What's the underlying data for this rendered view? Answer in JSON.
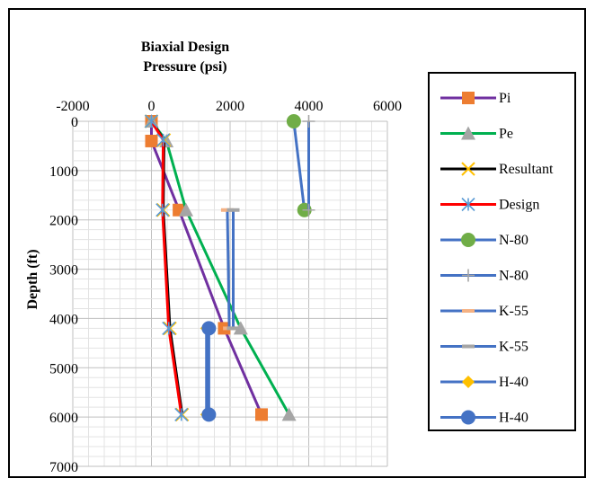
{
  "chart_data": {
    "type": "line",
    "title": "Biaxial Design Pressure (psi)",
    "title_lines": [
      "Biaxial Design",
      "Pressure (psi)"
    ],
    "xlabel": "",
    "ylabel": "Depth (ft)",
    "xlim": [
      -2000,
      6000
    ],
    "ylim": [
      0,
      7000
    ],
    "y_reversed": true,
    "x_ticks": [
      "-2000",
      "0",
      "2000",
      "4000",
      "6000"
    ],
    "y_ticks": [
      "0",
      "1000",
      "2000",
      "3000",
      "4000",
      "5000",
      "6000",
      "7000"
    ],
    "x_axis_position": "top",
    "grid": true,
    "legend_position": "right",
    "series": [
      {
        "name": "Pi",
        "color": "#7030a0",
        "marker": "square",
        "marker_color": "#ed7d31",
        "points": [
          [
            0,
            0
          ],
          [
            0,
            400
          ],
          [
            700,
            1800
          ],
          [
            1850,
            4200
          ],
          [
            2800,
            5950
          ]
        ]
      },
      {
        "name": "Pe",
        "color": "#00b050",
        "marker": "triangle",
        "marker_color": "#a5a5a5",
        "points": [
          [
            0,
            0
          ],
          [
            380,
            400
          ],
          [
            880,
            1800
          ],
          [
            2270,
            4200
          ],
          [
            3500,
            5950
          ]
        ]
      },
      {
        "name": "Resultant",
        "color": "#000000",
        "marker": "x",
        "marker_color": "#ffc000",
        "points": [
          [
            0,
            0
          ],
          [
            320,
            380
          ],
          [
            300,
            1800
          ],
          [
            470,
            4200
          ],
          [
            780,
            5950
          ]
        ]
      },
      {
        "name": "Design",
        "color": "#ff0000",
        "marker": "asterisk",
        "marker_color": "#5b9bd5",
        "points": [
          [
            0,
            0
          ],
          [
            300,
            380
          ],
          [
            280,
            1800
          ],
          [
            440,
            4200
          ],
          [
            760,
            5950
          ]
        ]
      },
      {
        "name": "N-80",
        "color": "#4472c4",
        "marker": "circle",
        "marker_color": "#70ad47",
        "points": [
          [
            3620,
            0
          ],
          [
            3890,
            1800
          ]
        ]
      },
      {
        "name": "N-80",
        "color": "#4472c4",
        "marker": "plus",
        "marker_color": "#a5a5a5",
        "points": [
          [
            4000,
            0
          ],
          [
            4000,
            1800
          ]
        ]
      },
      {
        "name": "K-55",
        "color": "#4472c4",
        "marker": "dash",
        "marker_color": "#f4b183",
        "points": [
          [
            1930,
            1800
          ],
          [
            1980,
            4200
          ]
        ]
      },
      {
        "name": "K-55",
        "color": "#4472c4",
        "marker": "dash",
        "marker_color": "#a5a5a5",
        "points": [
          [
            2080,
            1800
          ],
          [
            2080,
            4200
          ]
        ]
      },
      {
        "name": "H-40",
        "color": "#4472c4",
        "marker": "diamond",
        "marker_color": "#ffc000",
        "points": [
          [
            1400,
            4200
          ],
          [
            1400,
            5950
          ]
        ]
      },
      {
        "name": "H-40",
        "color": "#4472c4",
        "marker": "circle",
        "marker_color": "#4472c4",
        "points": [
          [
            1460,
            4200
          ],
          [
            1460,
            5950
          ]
        ]
      }
    ]
  }
}
